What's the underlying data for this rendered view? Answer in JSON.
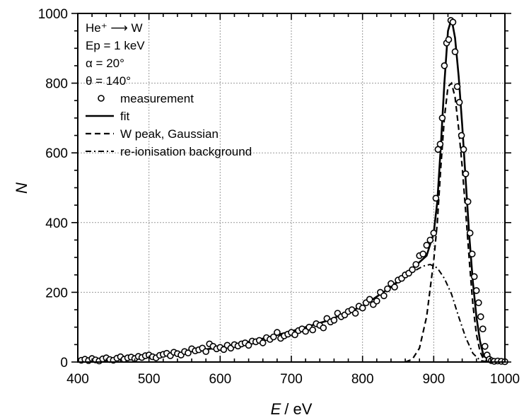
{
  "chart_data": {
    "type": "line",
    "xlabel_var": "E",
    "xlabel_unit": "/ eV",
    "ylabel": "N",
    "xlim": [
      400,
      1000
    ],
    "ylim": [
      0,
      1000
    ],
    "x_ticks": [
      400,
      500,
      600,
      700,
      800,
      900,
      1000
    ],
    "y_ticks": [
      0,
      200,
      400,
      600,
      800,
      1000
    ],
    "grid": true,
    "legend_position": "top-left",
    "annotations": {
      "reaction": "He⁺ ⟶ W",
      "energy": "Ep = 1 keV",
      "alpha": "α = 20°",
      "theta": "θ = 140°"
    },
    "series": [
      {
        "name": "measurement",
        "style": "open-circles",
        "x": [
          405,
          410,
          415,
          420,
          425,
          430,
          435,
          440,
          445,
          450,
          455,
          460,
          465,
          470,
          475,
          480,
          485,
          490,
          495,
          500,
          505,
          510,
          515,
          520,
          525,
          530,
          535,
          540,
          545,
          550,
          555,
          560,
          565,
          570,
          575,
          580,
          585,
          590,
          595,
          600,
          605,
          610,
          615,
          620,
          625,
          630,
          635,
          640,
          645,
          650,
          655,
          660,
          665,
          670,
          675,
          680,
          685,
          690,
          695,
          700,
          705,
          710,
          715,
          720,
          725,
          730,
          735,
          740,
          745,
          750,
          755,
          760,
          765,
          770,
          775,
          780,
          785,
          790,
          795,
          800,
          805,
          810,
          815,
          820,
          825,
          830,
          835,
          840,
          845,
          850,
          855,
          860,
          865,
          870,
          875,
          880,
          885,
          890,
          895,
          900,
          903,
          906,
          909,
          912,
          915,
          918,
          921,
          924,
          927,
          930,
          933,
          936,
          939,
          942,
          945,
          948,
          951,
          954,
          957,
          960,
          963,
          966,
          969,
          972,
          975,
          978,
          981,
          985,
          990,
          995,
          1000
        ],
        "y": [
          5,
          8,
          4,
          10,
          6,
          3,
          9,
          12,
          7,
          5,
          11,
          15,
          8,
          12,
          14,
          10,
          16,
          13,
          18,
          20,
          15,
          12,
          19,
          22,
          25,
          18,
          28,
          24,
          20,
          30,
          26,
          38,
          32,
          35,
          40,
          30,
          52,
          45,
          38,
          42,
          36,
          48,
          40,
          50,
          46,
          52,
          55,
          48,
          60,
          58,
          62,
          55,
          70,
          65,
          72,
          85,
          68,
          75,
          80,
          85,
          78,
          90,
          95,
          88,
          100,
          92,
          110,
          105,
          98,
          125,
          115,
          120,
          140,
          130,
          135,
          145,
          150,
          140,
          160,
          155,
          170,
          180,
          165,
          175,
          200,
          190,
          210,
          225,
          215,
          235,
          240,
          250,
          255,
          265,
          280,
          305,
          310,
          335,
          350,
          370,
          470,
          610,
          625,
          700,
          850,
          915,
          925,
          980,
          975,
          890,
          790,
          745,
          650,
          610,
          540,
          460,
          370,
          310,
          245,
          205,
          170,
          130,
          95,
          45,
          20,
          8,
          4,
          2,
          3,
          2,
          1
        ]
      },
      {
        "name": "fit",
        "style": "solid",
        "x": [
          400,
          450,
          500,
          550,
          600,
          650,
          700,
          750,
          800,
          840,
          870,
          890,
          900,
          905,
          910,
          915,
          920,
          925,
          930,
          935,
          940,
          945,
          950,
          955,
          960,
          965,
          970,
          980,
          990,
          1000
        ],
        "y": [
          4,
          8,
          15,
          28,
          42,
          62,
          88,
          118,
          160,
          215,
          268,
          305,
          370,
          460,
          620,
          800,
          950,
          985,
          930,
          820,
          680,
          520,
          360,
          230,
          130,
          60,
          18,
          2,
          0,
          0
        ]
      },
      {
        "name": "W peak, Gaussian",
        "style": "dashed",
        "x": [
          860,
          870,
          880,
          890,
          900,
          905,
          910,
          915,
          920,
          925,
          930,
          935,
          940,
          945,
          950,
          955,
          960,
          965,
          970,
          980
        ],
        "y": [
          0,
          8,
          40,
          130,
          290,
          400,
          560,
          700,
          790,
          800,
          760,
          670,
          560,
          430,
          290,
          165,
          80,
          30,
          8,
          0
        ]
      },
      {
        "name": "re-ionisation background",
        "style": "dash-dot",
        "x": [
          400,
          450,
          500,
          550,
          600,
          650,
          700,
          750,
          800,
          840,
          870,
          885,
          895,
          905,
          915,
          925,
          935,
          945,
          955,
          965,
          975
        ],
        "y": [
          4,
          8,
          15,
          28,
          42,
          62,
          88,
          118,
          160,
          215,
          258,
          275,
          280,
          270,
          240,
          195,
          130,
          70,
          25,
          5,
          0
        ]
      }
    ]
  }
}
